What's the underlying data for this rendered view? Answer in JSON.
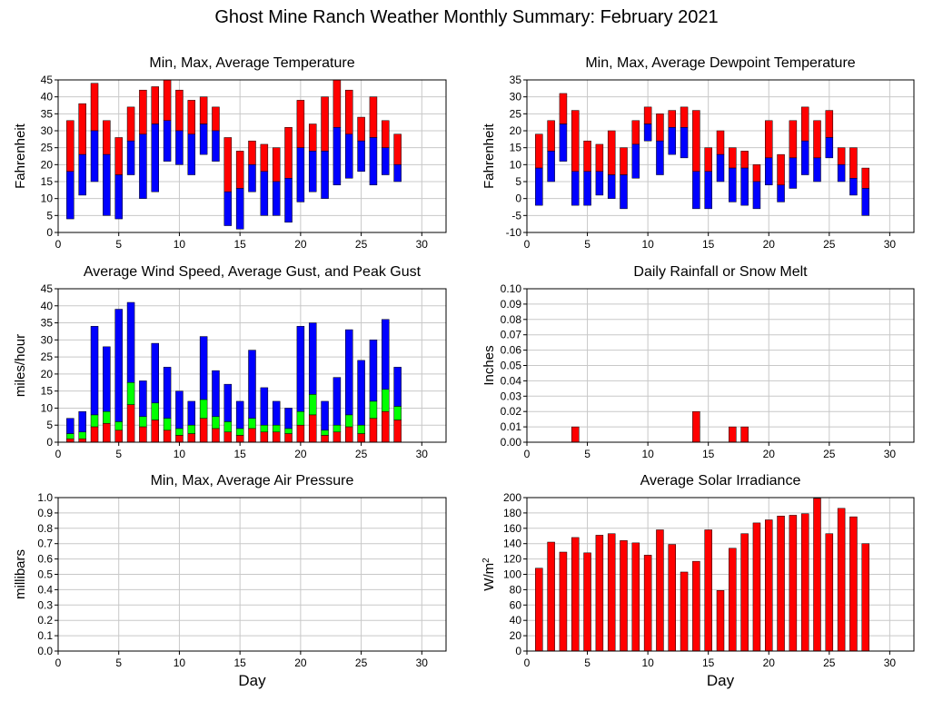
{
  "title": "Ghost Mine Ranch Weather Monthly Summary: February 2021",
  "colors": {
    "red": "#ff0000",
    "blue": "#0000ff",
    "green": "#00ff00",
    "grid": "#c8c8c8"
  },
  "chart_data": [
    {
      "type": "bar",
      "subtype": "floating-range",
      "title": "Min, Max, Average Temperature",
      "xlabel": "",
      "ylabel": "Fahrenheit",
      "xlim": [
        0,
        32
      ],
      "ylim": [
        0,
        45
      ],
      "ytick_step": 5,
      "grid": true,
      "x": [
        1,
        2,
        3,
        4,
        5,
        6,
        7,
        8,
        9,
        10,
        11,
        12,
        13,
        14,
        15,
        16,
        17,
        18,
        19,
        20,
        21,
        22,
        23,
        24,
        25,
        26,
        27,
        28
      ],
      "series": [
        {
          "role": "min",
          "color": "blue",
          "values": [
            4,
            11,
            15,
            5,
            4,
            17,
            10,
            12,
            21,
            20,
            17,
            23,
            21,
            2,
            1,
            12,
            5,
            5,
            3,
            9,
            12,
            10,
            14,
            16,
            18,
            14,
            17,
            15
          ]
        },
        {
          "role": "avg",
          "color": "split",
          "values": [
            18,
            23,
            30,
            23,
            17,
            27,
            29,
            32,
            33,
            30,
            29,
            32,
            30,
            12,
            13,
            20,
            18,
            15,
            16,
            25,
            24,
            24,
            31,
            29,
            27,
            28,
            25,
            20
          ]
        },
        {
          "role": "max",
          "color": "red",
          "values": [
            33,
            38,
            44,
            33,
            28,
            37,
            42,
            43,
            45,
            42,
            39,
            40,
            37,
            28,
            24,
            27,
            26,
            25,
            31,
            39,
            32,
            40,
            45,
            42,
            34,
            40,
            33,
            29
          ]
        }
      ]
    },
    {
      "type": "bar",
      "subtype": "floating-range",
      "title": "Min, Max, Average Dewpoint Temperature",
      "xlabel": "",
      "ylabel": "Fahrenheit",
      "xlim": [
        0,
        32
      ],
      "ylim": [
        -10,
        35
      ],
      "ytick_step": 5,
      "grid": true,
      "x": [
        1,
        2,
        3,
        4,
        5,
        6,
        7,
        8,
        9,
        10,
        11,
        12,
        13,
        14,
        15,
        16,
        17,
        18,
        19,
        20,
        21,
        22,
        23,
        24,
        25,
        26,
        27,
        28
      ],
      "series": [
        {
          "role": "min",
          "color": "blue",
          "values": [
            -2,
            5,
            11,
            -2,
            -2,
            1,
            0,
            -3,
            6,
            17,
            7,
            13,
            12,
            -3,
            -3,
            5,
            -1,
            -2,
            -3,
            4,
            -1,
            3,
            7,
            5,
            12,
            5,
            1,
            -5
          ]
        },
        {
          "role": "avg",
          "color": "split",
          "values": [
            9,
            14,
            22,
            8,
            8,
            8,
            7,
            7,
            16,
            22,
            17,
            21,
            21,
            8,
            8,
            13,
            9,
            9,
            5,
            12,
            4,
            12,
            17,
            12,
            18,
            10,
            6,
            3
          ]
        },
        {
          "role": "max",
          "color": "red",
          "values": [
            19,
            23,
            31,
            26,
            17,
            16,
            20,
            15,
            23,
            27,
            25,
            26,
            27,
            26,
            15,
            20,
            15,
            14,
            10,
            23,
            13,
            23,
            27,
            23,
            26,
            15,
            15,
            9
          ]
        }
      ]
    },
    {
      "type": "bar",
      "subtype": "stacked-overlay",
      "title": "Average Wind Speed, Average Gust, and Peak Gust",
      "xlabel": "",
      "ylabel": "miles/hour",
      "xlim": [
        0,
        32
      ],
      "ylim": [
        0,
        45
      ],
      "ytick_step": 5,
      "grid": true,
      "x": [
        1,
        2,
        3,
        4,
        5,
        6,
        7,
        8,
        9,
        10,
        11,
        12,
        13,
        14,
        15,
        16,
        17,
        18,
        19,
        20,
        21,
        22,
        23,
        24,
        25,
        26,
        27,
        28
      ],
      "series": [
        {
          "role": "peak_gust",
          "color": "blue",
          "values": [
            7,
            9,
            34,
            28,
            39,
            41,
            18,
            29,
            22,
            15,
            12,
            31,
            21,
            17,
            12,
            27,
            16,
            12,
            10,
            34,
            35,
            12,
            19,
            33,
            24,
            30,
            36,
            22
          ]
        },
        {
          "role": "avg_gust",
          "color": "green",
          "values": [
            2.5,
            3,
            8,
            9,
            6,
            17.5,
            7.5,
            11.5,
            7,
            4,
            5,
            12.5,
            7.5,
            6,
            4,
            7,
            5,
            5,
            4,
            9,
            14,
            3.5,
            5,
            8,
            5,
            12,
            15.5,
            10.5
          ]
        },
        {
          "role": "avg_speed",
          "color": "red",
          "values": [
            1,
            1,
            4.5,
            5.5,
            3.5,
            11,
            4.5,
            6.5,
            3.5,
            2,
            2.5,
            7,
            4,
            3,
            2,
            4,
            3,
            3,
            2.5,
            5,
            8,
            2,
            3,
            4.5,
            2.5,
            7,
            9,
            6.5
          ]
        }
      ]
    },
    {
      "type": "bar",
      "title": "Daily Rainfall or Snow Melt",
      "xlabel": "",
      "ylabel": "Inches",
      "xlim": [
        0,
        32
      ],
      "ylim": [
        0,
        0.1
      ],
      "ytick_step": 0.01,
      "grid": true,
      "x": [
        1,
        2,
        3,
        4,
        5,
        6,
        7,
        8,
        9,
        10,
        11,
        12,
        13,
        14,
        15,
        16,
        17,
        18,
        19,
        20,
        21,
        22,
        23,
        24,
        25,
        26,
        27,
        28
      ],
      "series": [
        {
          "role": "rain",
          "color": "red",
          "values": [
            0,
            0,
            0,
            0.01,
            0,
            0,
            0,
            0,
            0,
            0,
            0,
            0,
            0,
            0.02,
            0,
            0,
            0.01,
            0.01,
            0,
            0,
            0,
            0,
            0,
            0,
            0,
            0,
            0,
            0
          ]
        }
      ]
    },
    {
      "type": "bar",
      "title": "Min, Max, Average Air Pressure",
      "xlabel": "Day",
      "ylabel": "millibars",
      "xlim": [
        0,
        32
      ],
      "ylim": [
        0,
        1.0
      ],
      "ytick_step": 0.1,
      "grid": true,
      "x": [],
      "series": []
    },
    {
      "type": "bar",
      "title": "Average Solar Irradiance",
      "xlabel": "Day",
      "ylabel": "W/m",
      "ylabel_sup": "2",
      "xlim": [
        0,
        32
      ],
      "ylim": [
        0,
        200
      ],
      "ytick_step": 20,
      "grid": true,
      "x": [
        1,
        2,
        3,
        4,
        5,
        6,
        7,
        8,
        9,
        10,
        11,
        12,
        13,
        14,
        15,
        16,
        17,
        18,
        19,
        20,
        21,
        22,
        23,
        24,
        25,
        26,
        27,
        28
      ],
      "series": [
        {
          "role": "solar",
          "color": "red",
          "values": [
            108,
            142,
            129,
            148,
            128,
            151,
            153,
            144,
            141,
            125,
            158,
            139,
            103,
            117,
            158,
            79,
            134,
            153,
            167,
            171,
            176,
            177,
            179,
            199,
            153,
            186,
            175,
            140
          ]
        }
      ]
    }
  ]
}
